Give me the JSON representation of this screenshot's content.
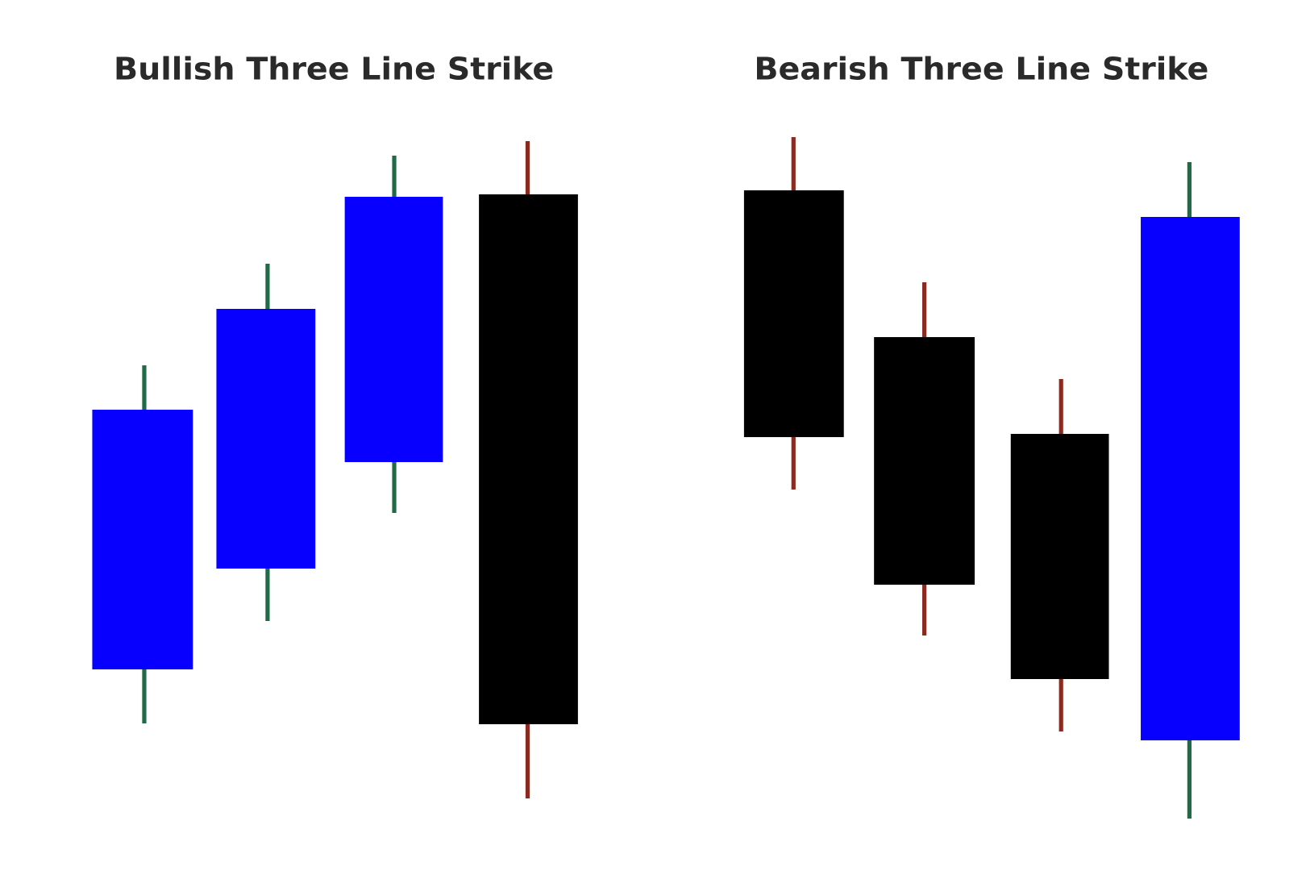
{
  "left": {
    "title": "Bullish Three Line Strike"
  },
  "right": {
    "title": "Bearish Three Line Strike"
  }
}
